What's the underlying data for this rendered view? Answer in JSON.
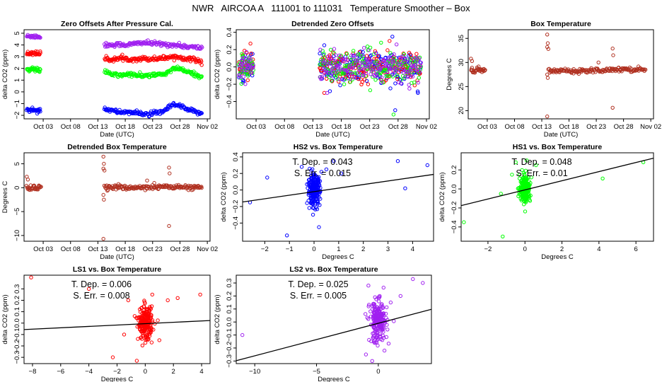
{
  "main_title": "NWR   AIRCOA A   111001 to 111031   Temperature Smoother – Box",
  "colors": {
    "blue": "#0000ff",
    "red": "#ff0000",
    "green": "#00ff00",
    "purple": "#a020f0",
    "brown": "#b03020",
    "black": "#000000"
  },
  "chart_data": [
    {
      "id": "zero-offsets",
      "type": "scatter",
      "title": "Zero Offsets After Pressure Cal.",
      "xlabel": "Date (UTC)",
      "ylabel": "delta CO2 (ppm)",
      "x_unit": "day_of_month",
      "xlim": [
        -0.5,
        33.5
      ],
      "ylim": [
        -2.3,
        5.3
      ],
      "xticks": [
        {
          "v": 3,
          "label": "Oct 03"
        },
        {
          "v": 8,
          "label": "Oct 08"
        },
        {
          "v": 13,
          "label": "Oct 13"
        },
        {
          "v": 18,
          "label": "Oct 18"
        },
        {
          "v": 23,
          "label": "Oct 23"
        },
        {
          "v": 28,
          "label": "Oct 28"
        },
        {
          "v": 33,
          "label": "Nov 02"
        }
      ],
      "yticks": [
        -2,
        -1,
        0,
        1,
        2,
        3,
        4,
        5
      ],
      "series": [
        {
          "name": "purple",
          "color": "#a020f0",
          "segments": [
            {
              "start": 0,
              "end": 2.5,
              "values": [
                4.75,
                4.7,
                4.8,
                4.7,
                4.75,
                4.65
              ]
            },
            {
              "start": 14.2,
              "end": 32,
              "values": [
                4.0,
                4.0,
                4.05,
                4.0,
                4.1,
                4.2,
                4.15,
                4.1,
                4.05,
                4.0,
                3.95,
                3.85,
                3.8,
                3.75
              ]
            }
          ]
        },
        {
          "name": "red",
          "color": "#ff0000",
          "segments": [
            {
              "start": 0,
              "end": 2.5,
              "values": [
                3.3,
                3.25,
                3.35,
                3.3,
                3.25,
                3.3
              ]
            },
            {
              "start": 14.2,
              "end": 32,
              "values": [
                2.8,
                2.75,
                2.85,
                2.8,
                2.8,
                2.85,
                2.8,
                2.85,
                2.9,
                3.0,
                2.95,
                2.85,
                2.75,
                2.6
              ]
            }
          ]
        },
        {
          "name": "green",
          "color": "#00ff00",
          "segments": [
            {
              "start": 0,
              "end": 2.5,
              "values": [
                1.9,
                1.85,
                1.95,
                1.9,
                1.9,
                1.85
              ]
            },
            {
              "start": 14.2,
              "end": 32,
              "values": [
                1.7,
                1.5,
                1.4,
                1.5,
                1.45,
                1.35,
                1.4,
                1.45,
                1.5,
                1.9,
                2.0,
                1.7,
                1.5,
                1.3
              ]
            }
          ]
        },
        {
          "name": "blue",
          "color": "#0000ff",
          "segments": [
            {
              "start": 0,
              "end": 2.5,
              "values": [
                -1.55,
                -1.6,
                -1.5,
                -1.55,
                -1.6,
                -1.55
              ]
            },
            {
              "start": 14.2,
              "end": 32,
              "values": [
                -1.4,
                -1.6,
                -1.75,
                -1.7,
                -1.8,
                -1.85,
                -1.9,
                -1.8,
                -1.65,
                -1.1,
                -1.2,
                -1.5,
                -1.7,
                -1.8
              ]
            }
          ]
        }
      ]
    },
    {
      "id": "detrended-zero-offsets",
      "type": "scatter",
      "title": "Detrended Zero Offsets",
      "xlabel": "Date (UTC)",
      "ylabel": "delta CO2 (ppm)",
      "x_unit": "day_of_month",
      "xlim": [
        -0.5,
        33.5
      ],
      "ylim": [
        -0.6,
        0.43
      ],
      "xticks": [
        {
          "v": 3,
          "label": "Oct 03"
        },
        {
          "v": 8,
          "label": "Oct 08"
        },
        {
          "v": 13,
          "label": "Oct 13"
        },
        {
          "v": 18,
          "label": "Oct 18"
        },
        {
          "v": 23,
          "label": "Oct 23"
        },
        {
          "v": 28,
          "label": "Oct 28"
        },
        {
          "v": 33,
          "label": "Nov 02"
        }
      ],
      "yticks": [
        -0.4,
        -0.2,
        0.0,
        0.2,
        0.4
      ],
      "y_label_format": "1",
      "series": [
        {
          "name": "blue",
          "color": "#0000ff",
          "segments": [
            {
              "start": 0,
              "end": 2.5,
              "spread": 0.09
            },
            {
              "start": 14.2,
              "end": 32,
              "spread": 0.1
            }
          ],
          "outliers": [
            [
              0.7,
              -0.18
            ],
            [
              15.0,
              0.25
            ],
            [
              27.0,
              0.35
            ],
            [
              27.5,
              -0.5
            ],
            [
              31.5,
              -0.3
            ],
            [
              16.0,
              -0.28
            ]
          ]
        },
        {
          "name": "red",
          "color": "#ff0000",
          "segments": [
            {
              "start": 0,
              "end": 2.5,
              "spread": 0.08
            },
            {
              "start": 14.2,
              "end": 32,
              "spread": 0.09
            }
          ],
          "outliers": [
            [
              2.0,
              0.27
            ],
            [
              15.0,
              -0.3
            ],
            [
              26.5,
              0.3
            ]
          ]
        },
        {
          "name": "green",
          "color": "#00ff00",
          "segments": [
            {
              "start": 0,
              "end": 2.5,
              "spread": 0.08
            },
            {
              "start": 14.2,
              "end": 32,
              "spread": 0.09
            }
          ],
          "outliers": [
            [
              0.5,
              0.15
            ],
            [
              27.2,
              -0.55
            ],
            [
              18.5,
              -0.2
            ],
            [
              25.0,
              0.28
            ]
          ]
        },
        {
          "name": "purple",
          "color": "#a020f0",
          "segments": [
            {
              "start": 0,
              "end": 2.5,
              "spread": 0.07
            },
            {
              "start": 14.2,
              "end": 32,
              "spread": 0.08
            }
          ],
          "outliers": [
            [
              30.0,
              -0.25
            ],
            [
              22.0,
              0.22
            ]
          ]
        }
      ]
    },
    {
      "id": "box-temperature",
      "type": "scatter",
      "title": "Box Temperature",
      "xlabel": "Date (UTC)",
      "ylabel": "Degrees C",
      "x_unit": "day_of_month",
      "xlim": [
        -0.5,
        33.5
      ],
      "ylim": [
        18.3,
        36.8
      ],
      "xticks": [
        {
          "v": 3,
          "label": "Oct 03"
        },
        {
          "v": 8,
          "label": "Oct 08"
        },
        {
          "v": 13,
          "label": "Oct 13"
        },
        {
          "v": 18,
          "label": "Oct 18"
        },
        {
          "v": 23,
          "label": "Oct 23"
        },
        {
          "v": 28,
          "label": "Oct 28"
        },
        {
          "v": 33,
          "label": "Nov 02"
        }
      ],
      "yticks": [
        20,
        25,
        30,
        35
      ],
      "series": [
        {
          "name": "brown",
          "color": "#b03020",
          "segments": [
            {
              "start": 0,
              "end": 2.6,
              "values": [
                28.5,
                28.2,
                28.6,
                28.3,
                28.5
              ]
            },
            {
              "start": 14.2,
              "end": 32,
              "values": [
                28.3,
                28.2,
                28.4,
                28.3,
                28.2,
                28.4,
                28.5,
                28.3,
                28.6,
                28.5,
                28.7,
                28.5,
                28.6,
                28.5
              ]
            }
          ],
          "outliers": [
            [
              0,
              30.8
            ],
            [
              0.2,
              30.3
            ],
            [
              14.0,
              35.8
            ],
            [
              14.1,
              34.0
            ],
            [
              14.0,
              33.2
            ],
            [
              14.2,
              32.8
            ],
            [
              14.0,
              18.8
            ],
            [
              14.1,
              26.8
            ],
            [
              14.0,
              27.5
            ],
            [
              26.0,
              32.9
            ],
            [
              26.1,
              31.5
            ],
            [
              26.0,
              20.6
            ],
            [
              23.4,
              30.0
            ]
          ]
        }
      ]
    },
    {
      "id": "detrended-box-temperature",
      "type": "scatter",
      "title": "Detrended Box Temperature",
      "xlabel": "Date (UTC)",
      "ylabel": "Degrees C",
      "x_unit": "day_of_month",
      "xlim": [
        -0.5,
        33.5
      ],
      "ylim": [
        -11.2,
        7.3
      ],
      "xticks": [
        {
          "v": 3,
          "label": "Oct 03"
        },
        {
          "v": 8,
          "label": "Oct 08"
        },
        {
          "v": 13,
          "label": "Oct 13"
        },
        {
          "v": 18,
          "label": "Oct 18"
        },
        {
          "v": 23,
          "label": "Oct 23"
        },
        {
          "v": 28,
          "label": "Oct 28"
        },
        {
          "v": 33,
          "label": "Nov 02"
        }
      ],
      "yticks": [
        -10,
        -5,
        0,
        5
      ],
      "series": [
        {
          "name": "brown",
          "color": "#b03020",
          "segments": [
            {
              "start": 0,
              "end": 2.6,
              "values": [
                0.2,
                -0.3,
                0.3,
                -0.2,
                0.4
              ]
            },
            {
              "start": 14.2,
              "end": 32,
              "values": [
                0.1,
                0.0,
                0.2,
                -0.1,
                0.0,
                0.1,
                0.2,
                0.0,
                0.3,
                0.1,
                0.2,
                0.0,
                0.1,
                0.0
              ]
            }
          ],
          "outliers": [
            [
              0,
              2.3
            ],
            [
              0.2,
              1.7
            ],
            [
              14.0,
              6.5
            ],
            [
              14.1,
              5.0
            ],
            [
              14.0,
              4.0
            ],
            [
              14.2,
              3.6
            ],
            [
              14.0,
              -10.7
            ],
            [
              14.1,
              -2.5
            ],
            [
              14.0,
              -1.5
            ],
            [
              26.0,
              4.2
            ],
            [
              26.1,
              3.0
            ],
            [
              26.0,
              -8.0
            ],
            [
              22.0,
              1.5
            ],
            [
              23.3,
              1.0
            ]
          ]
        }
      ]
    },
    {
      "id": "hs2-vs-box",
      "type": "scatter",
      "title": "HS2 vs. Box Temperature",
      "xlabel": "Degrees C",
      "ylabel": "delta CO2 (ppm)",
      "xlim": [
        -2.9,
        4.85
      ],
      "ylim": [
        -0.62,
        0.45
      ],
      "xticks": [
        -2,
        -1,
        0,
        1,
        2,
        3,
        4
      ],
      "yticks": [
        -0.4,
        -0.2,
        0.0,
        0.2,
        0.4
      ],
      "y_label_format": "1",
      "color": "#0000ff",
      "cluster": {
        "cx": 0.0,
        "cy": 0.0,
        "sx": 0.12,
        "sy": 0.09,
        "n": 240
      },
      "outliers": [
        [
          -2.6,
          -0.15
        ],
        [
          -1.9,
          0.15
        ],
        [
          -1.1,
          -0.55
        ],
        [
          0.8,
          0.35
        ],
        [
          1.1,
          0.2
        ],
        [
          3.4,
          0.35
        ],
        [
          3.7,
          0.02
        ],
        [
          4.6,
          0.3
        ],
        [
          0.2,
          -0.45
        ],
        [
          -0.5,
          0.28
        ],
        [
          0.3,
          0.22
        ],
        [
          0.5,
          0.25
        ]
      ],
      "fit": {
        "slope": 0.043,
        "intercept": -0.02
      },
      "annotation": {
        "tdep_label": "T. Dep. =",
        "tdep_value": "0.043",
        "serr_label": "S. Err. =",
        "serr_value": "0.015"
      }
    },
    {
      "id": "hs1-vs-box",
      "type": "scatter",
      "title": "HS1 vs. Box Temperature",
      "xlabel": "Degrees C",
      "ylabel": "delta CO2 (ppm)",
      "xlim": [
        -3.45,
        6.95
      ],
      "ylim": [
        -0.55,
        0.38
      ],
      "xticks": [
        -2,
        0,
        2,
        4,
        6
      ],
      "yticks": [
        -0.4,
        -0.2,
        0.0,
        0.2
      ],
      "y_label_format": "1",
      "color": "#00ff00",
      "cluster": {
        "cx": 0.0,
        "cy": 0.0,
        "sx": 0.14,
        "sy": 0.07,
        "n": 220
      },
      "outliers": [
        [
          -3.3,
          -0.35
        ],
        [
          -1.2,
          -0.5
        ],
        [
          -1.3,
          -0.05
        ],
        [
          4.2,
          0.11
        ],
        [
          6.4,
          0.28
        ],
        [
          0.6,
          0.25
        ],
        [
          -0.7,
          0.15
        ],
        [
          -0.5,
          0.28
        ],
        [
          0.1,
          0.3
        ]
      ],
      "fit": {
        "slope": 0.048,
        "intercept": -0.01
      },
      "annotation": {
        "tdep_label": "T. Dep. =",
        "tdep_value": "0.048",
        "serr_label": "S. Err. =",
        "serr_value": "0.01"
      }
    },
    {
      "id": "ls1-vs-box",
      "type": "scatter",
      "title": "LS1 vs. Box Temperature",
      "xlabel": "Degrees C",
      "ylabel": "delta CO2 (ppm)",
      "xlim": [
        -8.6,
        4.6
      ],
      "ylim": [
        -0.355,
        0.42
      ],
      "xticks": [
        -8,
        -6,
        -4,
        -2,
        0,
        2,
        4
      ],
      "yticks": [
        -0.3,
        -0.2,
        -0.1,
        0.0,
        0.1,
        0.2,
        0.3
      ],
      "y_label_format": "1",
      "color": "#ff0000",
      "cluster": {
        "cx": 0.0,
        "cy": 0.0,
        "sx": 0.25,
        "sy": 0.07,
        "n": 220
      },
      "outliers": [
        [
          -8.1,
          0.4
        ],
        [
          -4.0,
          0.3
        ],
        [
          -2.3,
          -0.3
        ],
        [
          -1.2,
          0.2
        ],
        [
          -0.6,
          -0.33
        ],
        [
          0.5,
          0.25
        ],
        [
          1.6,
          0.2
        ],
        [
          2.3,
          0.22
        ],
        [
          3.9,
          0.25
        ],
        [
          -1.5,
          -0.1
        ],
        [
          1.0,
          -0.15
        ]
      ],
      "fit": {
        "slope": 0.006,
        "intercept": -0.005
      },
      "annotation": {
        "tdep_label": "T. Dep. =",
        "tdep_value": "0.006",
        "serr_label": "S. Err. =",
        "serr_value": "0.008"
      }
    },
    {
      "id": "ls2-vs-box",
      "type": "scatter",
      "title": "LS2 vs. Box Temperature",
      "xlabel": "Degrees C",
      "ylabel": "delta CO2 (ppm)",
      "xlim": [
        -11.5,
        4.3
      ],
      "ylim": [
        -0.32,
        0.36
      ],
      "xticks": [
        -10,
        -5,
        0
      ],
      "yticks": [
        -0.3,
        -0.2,
        -0.1,
        0.0,
        0.1,
        0.2,
        0.3
      ],
      "y_label_format": "1",
      "color": "#a020f0",
      "cluster": {
        "cx": 0.0,
        "cy": 0.0,
        "sx": 0.35,
        "sy": 0.08,
        "n": 220
      },
      "outliers": [
        [
          -11.0,
          -0.1
        ],
        [
          2.8,
          0.33
        ],
        [
          3.6,
          0.3
        ],
        [
          1.8,
          0.2
        ],
        [
          -0.8,
          0.28
        ],
        [
          -1.0,
          -0.25
        ],
        [
          0.5,
          -0.22
        ],
        [
          -0.5,
          -0.3
        ],
        [
          1.0,
          0.15
        ]
      ],
      "fit": {
        "slope": 0.025,
        "intercept": -0.01
      },
      "annotation": {
        "tdep_label": "T. Dep. =",
        "tdep_value": "0.025",
        "serr_label": "S. Err. =",
        "serr_value": "0.005"
      }
    }
  ]
}
